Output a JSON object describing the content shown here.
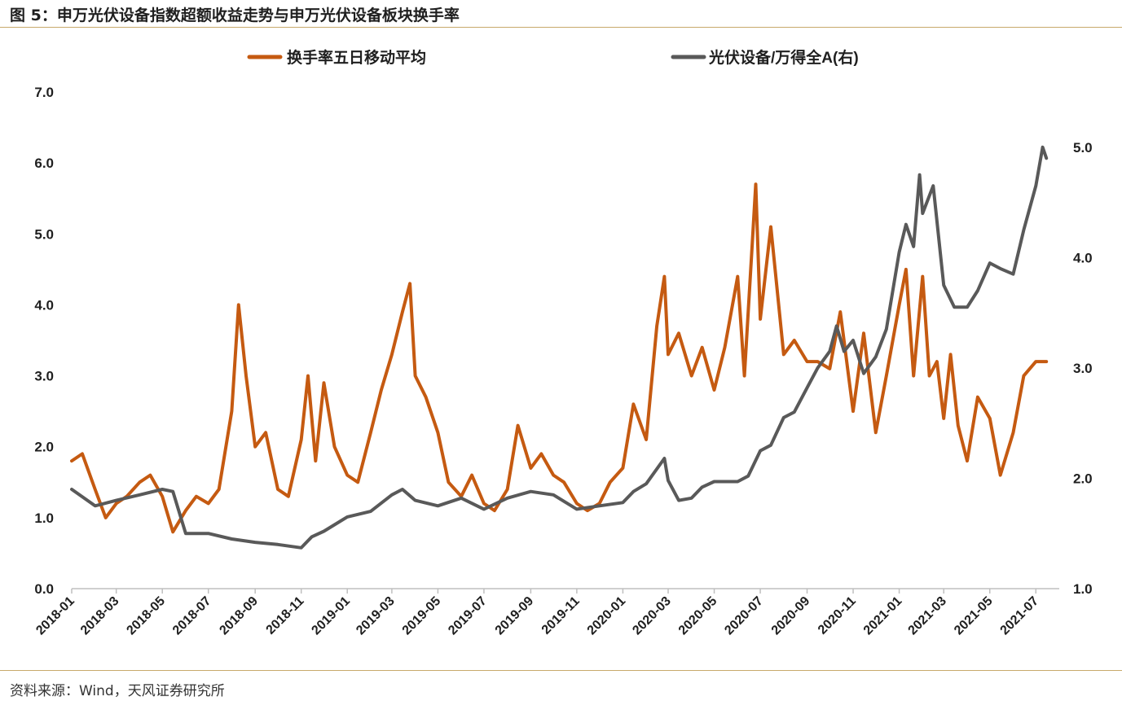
{
  "figure_title": "图 5：申万光伏设备指数超额收益走势与申万光伏设备板块换手率",
  "source": "资料来源：Wind，天风证券研究所",
  "colors": {
    "turnover": "#c55a11",
    "excess": "#595959",
    "rule": "#c8a96b",
    "axis": "#bfbfbf",
    "text": "#1f1f1f"
  },
  "chart_data": {
    "type": "line",
    "legend_position": "top",
    "grid": false,
    "x_ticks": [
      "2018-01",
      "2018-03",
      "2018-05",
      "2018-07",
      "2018-09",
      "2018-11",
      "2019-01",
      "2019-03",
      "2019-05",
      "2019-07",
      "2019-09",
      "2019-11",
      "2020-01",
      "2020-03",
      "2020-05",
      "2020-07",
      "2020-09",
      "2020-11",
      "2021-01",
      "2021-03",
      "2021-05",
      "2021-07"
    ],
    "x_range": [
      "2018-01",
      "2021-08"
    ],
    "y_left": {
      "min": 0,
      "max": 7,
      "ticks": [
        "0.0",
        "1.0",
        "2.0",
        "3.0",
        "4.0",
        "5.0",
        "6.0",
        "7.0"
      ]
    },
    "y_right": {
      "min": 1,
      "max": 5.5,
      "ticks": [
        "1.0",
        "2.0",
        "3.0",
        "4.0",
        "5.0"
      ]
    },
    "series": [
      {
        "name": "换手率五日移动平均",
        "axis": "left",
        "points": [
          [
            "2018-01",
            1.8
          ],
          [
            "2018-01-15",
            1.9
          ],
          [
            "2018-02",
            1.4
          ],
          [
            "2018-02-15",
            1.0
          ],
          [
            "2018-03",
            1.2
          ],
          [
            "2018-03-15",
            1.3
          ],
          [
            "2018-04",
            1.5
          ],
          [
            "2018-04-15",
            1.6
          ],
          [
            "2018-05",
            1.3
          ],
          [
            "2018-05-15",
            0.8
          ],
          [
            "2018-06",
            1.1
          ],
          [
            "2018-06-15",
            1.3
          ],
          [
            "2018-07",
            1.2
          ],
          [
            "2018-07-15",
            1.4
          ],
          [
            "2018-08",
            2.5
          ],
          [
            "2018-08-10",
            4.0
          ],
          [
            "2018-08-20",
            3.0
          ],
          [
            "2018-09",
            2.0
          ],
          [
            "2018-09-15",
            2.2
          ],
          [
            "2018-10",
            1.4
          ],
          [
            "2018-10-15",
            1.3
          ],
          [
            "2018-11",
            2.1
          ],
          [
            "2018-11-10",
            3.0
          ],
          [
            "2018-11-20",
            1.8
          ],
          [
            "2018-12",
            2.9
          ],
          [
            "2018-12-15",
            2.0
          ],
          [
            "2019-01",
            1.6
          ],
          [
            "2019-01-15",
            1.5
          ],
          [
            "2019-02",
            2.2
          ],
          [
            "2019-02-15",
            2.8
          ],
          [
            "2019-03",
            3.3
          ],
          [
            "2019-03-15",
            3.9
          ],
          [
            "2019-03-25",
            4.3
          ],
          [
            "2019-04",
            3.0
          ],
          [
            "2019-04-15",
            2.7
          ],
          [
            "2019-05",
            2.2
          ],
          [
            "2019-05-15",
            1.5
          ],
          [
            "2019-06",
            1.3
          ],
          [
            "2019-06-15",
            1.6
          ],
          [
            "2019-07",
            1.2
          ],
          [
            "2019-07-15",
            1.1
          ],
          [
            "2019-08",
            1.4
          ],
          [
            "2019-08-15",
            2.3
          ],
          [
            "2019-09",
            1.7
          ],
          [
            "2019-09-15",
            1.9
          ],
          [
            "2019-10",
            1.6
          ],
          [
            "2019-10-15",
            1.5
          ],
          [
            "2019-11",
            1.2
          ],
          [
            "2019-11-15",
            1.1
          ],
          [
            "2019-12",
            1.2
          ],
          [
            "2019-12-15",
            1.5
          ],
          [
            "2020-01",
            1.7
          ],
          [
            "2020-01-15",
            2.6
          ],
          [
            "2020-02",
            2.1
          ],
          [
            "2020-02-15",
            3.7
          ],
          [
            "2020-02-25",
            4.4
          ],
          [
            "2020-03",
            3.3
          ],
          [
            "2020-03-15",
            3.6
          ],
          [
            "2020-04",
            3.0
          ],
          [
            "2020-04-15",
            3.4
          ],
          [
            "2020-05",
            2.8
          ],
          [
            "2020-05-15",
            3.4
          ],
          [
            "2020-06",
            4.4
          ],
          [
            "2020-06-10",
            3.0
          ],
          [
            "2020-06-20",
            4.8
          ],
          [
            "2020-06-25",
            5.7
          ],
          [
            "2020-07",
            3.8
          ],
          [
            "2020-07-15",
            5.1
          ],
          [
            "2020-08",
            3.3
          ],
          [
            "2020-08-15",
            3.5
          ],
          [
            "2020-09",
            3.2
          ],
          [
            "2020-09-15",
            3.2
          ],
          [
            "2020-10",
            3.1
          ],
          [
            "2020-10-15",
            3.9
          ],
          [
            "2020-11",
            2.5
          ],
          [
            "2020-11-15",
            3.6
          ],
          [
            "2020-12",
            2.2
          ],
          [
            "2020-12-15",
            3.0
          ],
          [
            "2021-01",
            4.0
          ],
          [
            "2021-01-10",
            4.5
          ],
          [
            "2021-01-20",
            3.0
          ],
          [
            "2021-02",
            4.4
          ],
          [
            "2021-02-10",
            3.0
          ],
          [
            "2021-02-20",
            3.2
          ],
          [
            "2021-03",
            2.4
          ],
          [
            "2021-03-10",
            3.3
          ],
          [
            "2021-03-20",
            2.3
          ],
          [
            "2021-04",
            1.8
          ],
          [
            "2021-04-15",
            2.7
          ],
          [
            "2021-05",
            2.4
          ],
          [
            "2021-05-15",
            1.6
          ],
          [
            "2021-06",
            2.2
          ],
          [
            "2021-06-15",
            3.0
          ],
          [
            "2021-07",
            3.2
          ],
          [
            "2021-07-15",
            3.2
          ]
        ]
      },
      {
        "name": "光伏设备/万得全A(右)",
        "axis": "right",
        "points": [
          [
            "2018-01",
            1.9
          ],
          [
            "2018-02",
            1.75
          ],
          [
            "2018-03",
            1.8
          ],
          [
            "2018-04",
            1.85
          ],
          [
            "2018-05",
            1.9
          ],
          [
            "2018-05-15",
            1.88
          ],
          [
            "2018-06",
            1.5
          ],
          [
            "2018-07",
            1.5
          ],
          [
            "2018-08",
            1.45
          ],
          [
            "2018-09",
            1.42
          ],
          [
            "2018-10",
            1.4
          ],
          [
            "2018-11",
            1.37
          ],
          [
            "2018-11-15",
            1.47
          ],
          [
            "2018-12",
            1.52
          ],
          [
            "2019-01",
            1.65
          ],
          [
            "2019-02",
            1.7
          ],
          [
            "2019-03",
            1.85
          ],
          [
            "2019-03-15",
            1.9
          ],
          [
            "2019-04",
            1.8
          ],
          [
            "2019-05",
            1.75
          ],
          [
            "2019-06",
            1.82
          ],
          [
            "2019-07",
            1.72
          ],
          [
            "2019-08",
            1.82
          ],
          [
            "2019-09",
            1.88
          ],
          [
            "2019-10",
            1.85
          ],
          [
            "2019-11",
            1.72
          ],
          [
            "2019-12",
            1.75
          ],
          [
            "2020-01",
            1.78
          ],
          [
            "2020-01-15",
            1.88
          ],
          [
            "2020-02",
            1.95
          ],
          [
            "2020-02-25",
            2.18
          ],
          [
            "2020-03",
            1.98
          ],
          [
            "2020-03-15",
            1.8
          ],
          [
            "2020-04",
            1.82
          ],
          [
            "2020-04-15",
            1.92
          ],
          [
            "2020-05",
            1.97
          ],
          [
            "2020-06",
            1.97
          ],
          [
            "2020-06-15",
            2.02
          ],
          [
            "2020-07",
            2.25
          ],
          [
            "2020-07-15",
            2.3
          ],
          [
            "2020-08",
            2.55
          ],
          [
            "2020-08-15",
            2.6
          ],
          [
            "2020-09",
            2.82
          ],
          [
            "2020-09-15",
            3.0
          ],
          [
            "2020-10",
            3.15
          ],
          [
            "2020-10-10",
            3.38
          ],
          [
            "2020-10-20",
            3.15
          ],
          [
            "2020-11",
            3.25
          ],
          [
            "2020-11-15",
            2.95
          ],
          [
            "2020-12",
            3.1
          ],
          [
            "2020-12-15",
            3.35
          ],
          [
            "2021-01",
            4.05
          ],
          [
            "2021-01-10",
            4.3
          ],
          [
            "2021-01-20",
            4.1
          ],
          [
            "2021-01-28",
            4.75
          ],
          [
            "2021-02",
            4.4
          ],
          [
            "2021-02-15",
            4.65
          ],
          [
            "2021-03",
            3.75
          ],
          [
            "2021-03-15",
            3.55
          ],
          [
            "2021-04",
            3.55
          ],
          [
            "2021-04-15",
            3.7
          ],
          [
            "2021-05",
            3.95
          ],
          [
            "2021-05-15",
            3.9
          ],
          [
            "2021-06",
            3.85
          ],
          [
            "2021-06-15",
            4.25
          ],
          [
            "2021-07",
            4.65
          ],
          [
            "2021-07-10",
            5.0
          ],
          [
            "2021-07-15",
            4.9
          ]
        ]
      }
    ]
  }
}
